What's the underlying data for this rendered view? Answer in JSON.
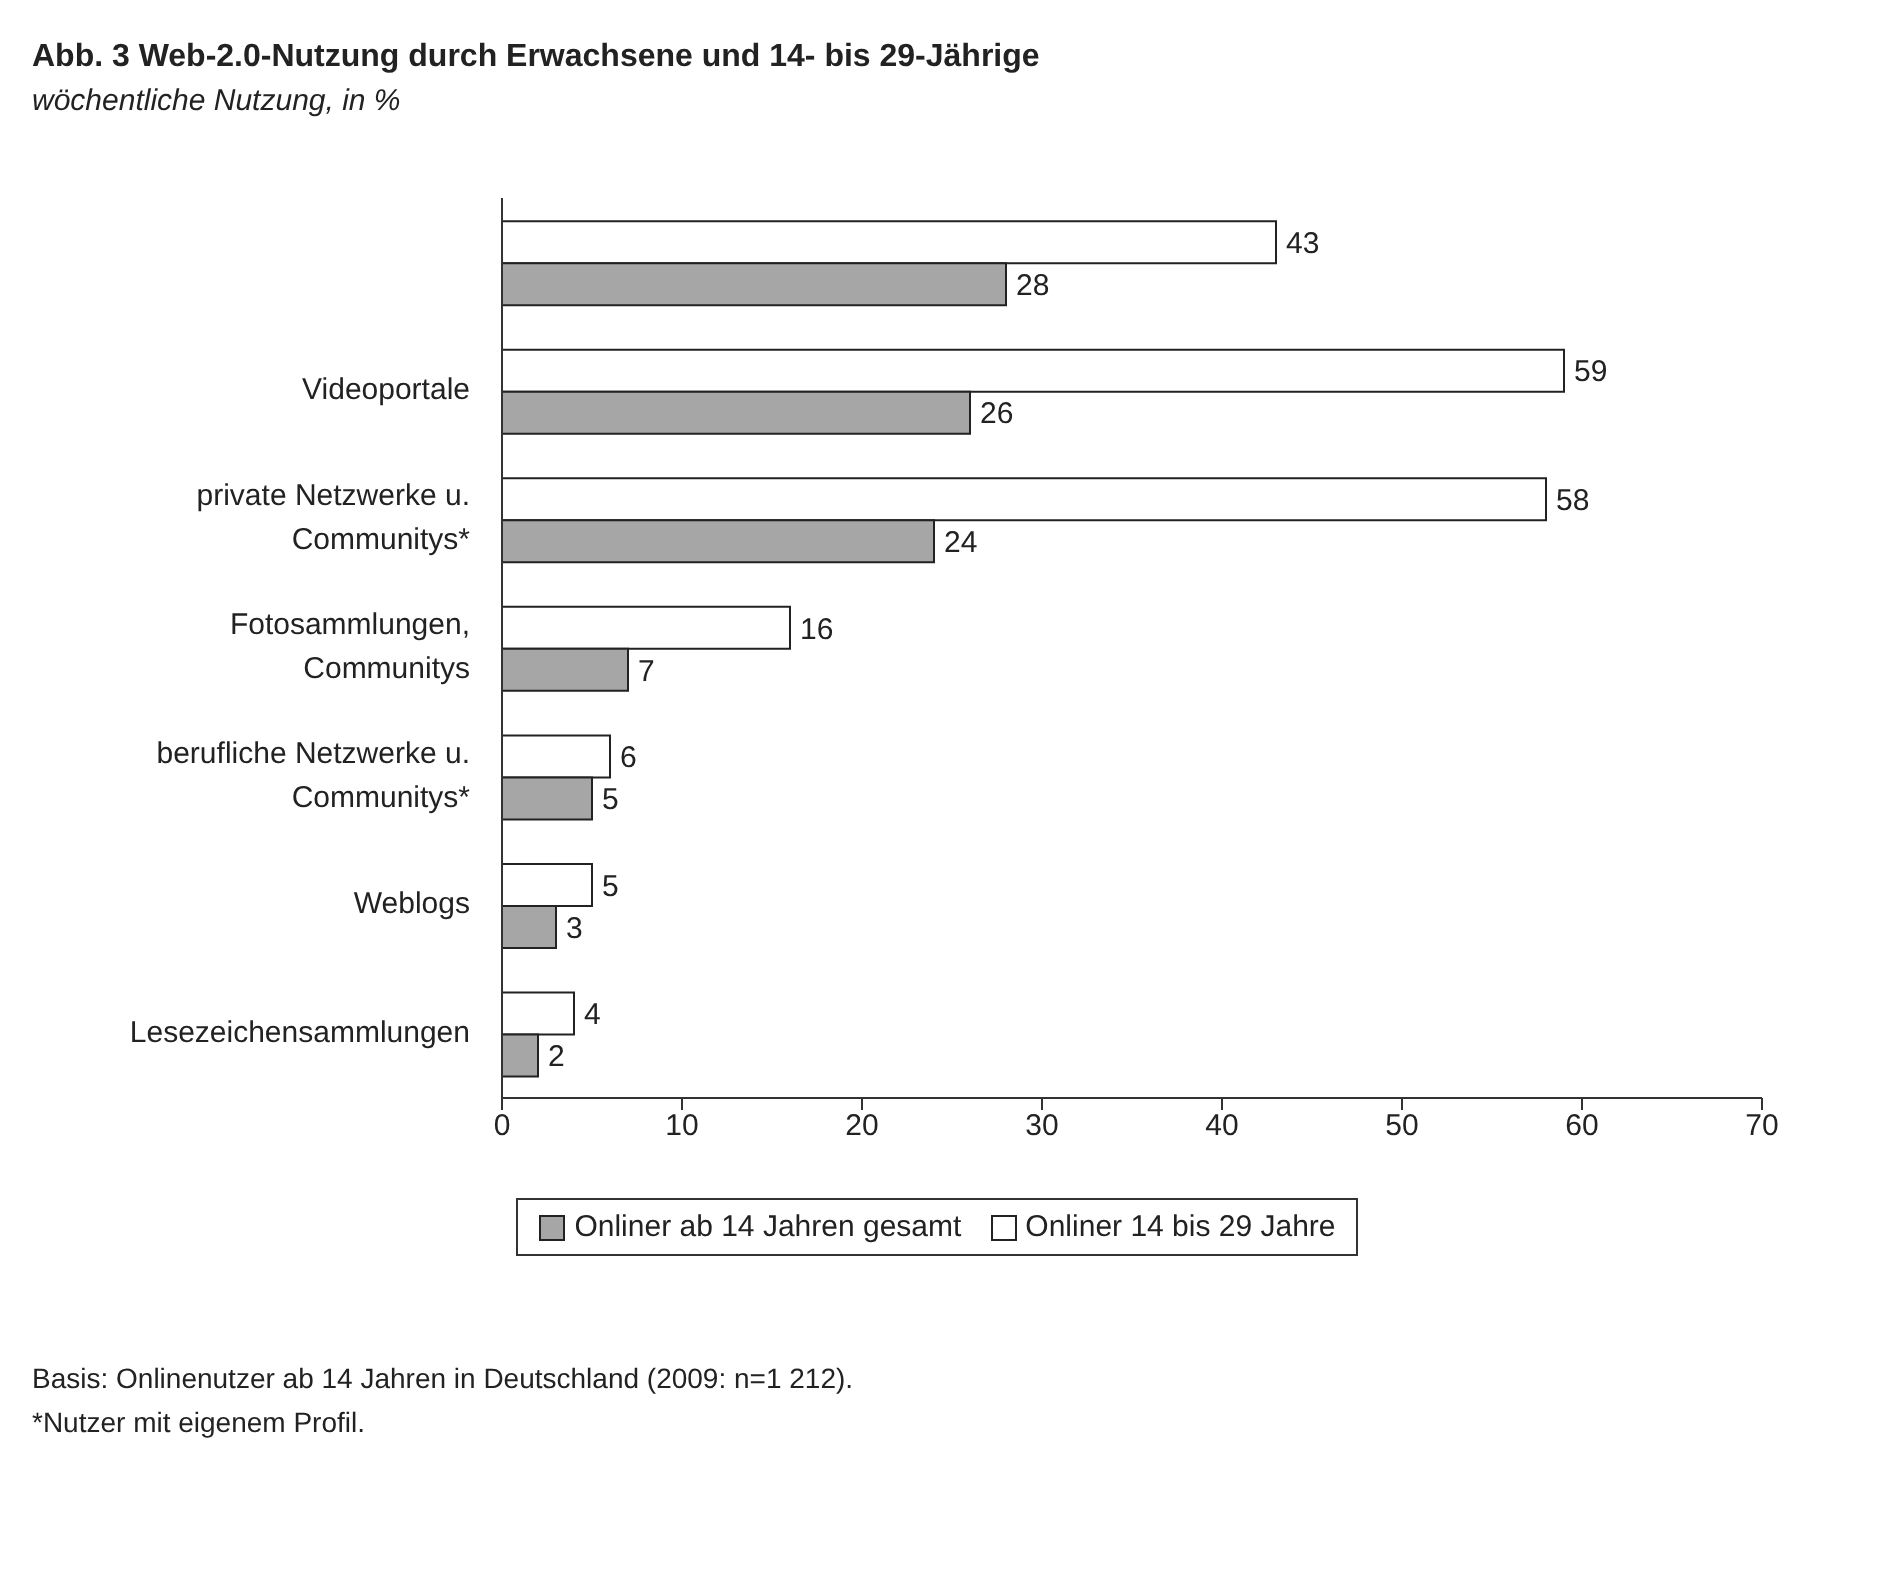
{
  "chart_data": {
    "type": "bar",
    "orientation": "horizontal",
    "title": "Abb. 3  Web-2.0-Nutzung durch Erwachsene und 14- bis 29-Jährige",
    "subtitle": "wöchentliche Nutzung, in %",
    "categories": [
      null,
      "Videoportale",
      "private Netzwerke u. Communitys*",
      "Fotosammlungen, Communitys",
      "berufliche Netzwerke u. Communitys*",
      "Weblogs",
      "Lesezeichensammlungen"
    ],
    "series": [
      {
        "name": "Onliner ab 14 Jahren gesamt",
        "color": "#a6a6a6",
        "values": [
          28,
          26,
          24,
          7,
          5,
          3,
          2
        ]
      },
      {
        "name": "Onliner 14 bis 29 Jahre",
        "color": "#ffffff",
        "values": [
          43,
          59,
          58,
          16,
          6,
          5,
          4
        ]
      }
    ],
    "xlim": [
      0,
      70
    ],
    "xticks": [
      0,
      10,
      20,
      30,
      40,
      50,
      60,
      70
    ],
    "data_labels": true,
    "legend": "bottom",
    "grid": false,
    "annotations": [
      "Basis: Onlinenutzer ab 14 Jahren in Deutschland (2009: n=1 212).",
      "*Nutzer mit eigenem Profil."
    ]
  }
}
